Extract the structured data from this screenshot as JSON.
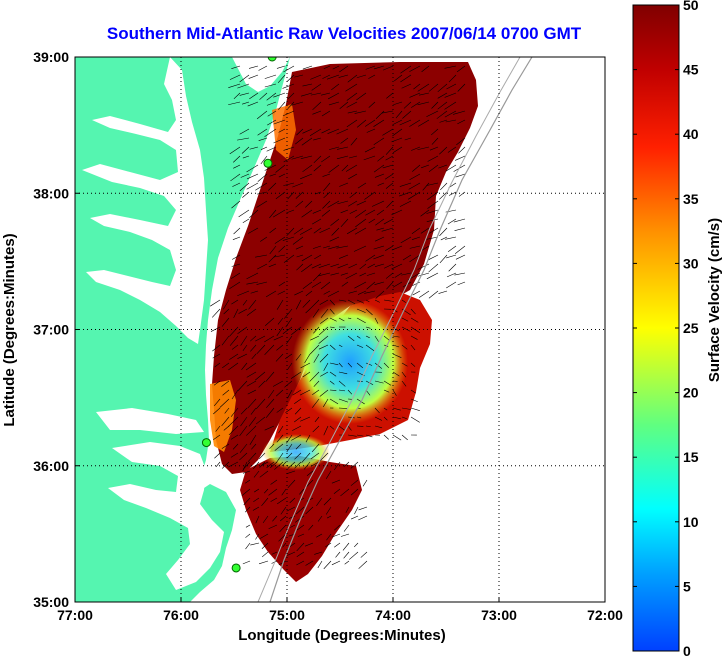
{
  "title": "Southern Mid-Atlantic Raw Velocities 2007/06/14 0700 GMT",
  "xlabel": "Longitude (Degrees:Minutes)",
  "ylabel": "Latitude (Degrees:Minutes)",
  "x_ticks": [
    "77:00",
    "76:00",
    "75:00",
    "74:00",
    "73:00",
    "72:00"
  ],
  "y_ticks": [
    "39:00",
    "38:00",
    "37:00",
    "36:00",
    "35:00"
  ],
  "colorbar": {
    "label": "Surface Velocity (cm/s)",
    "ticks": [
      "0",
      "5",
      "10",
      "15",
      "20",
      "25",
      "30",
      "35",
      "40",
      "45",
      "50"
    ],
    "min": 0,
    "max": 50
  },
  "map_extent": {
    "lon_min": -77,
    "lon_max": -72,
    "lat_min": 35,
    "lat_max": 39
  },
  "colors": {
    "land": "#55f5b0",
    "title": "#0000ff",
    "grid": "#000000"
  },
  "station_markers": [
    {
      "lon": -75.14,
      "lat": 39.0
    },
    {
      "lon": -75.18,
      "lat": 38.22
    },
    {
      "lon": -75.76,
      "lat": 36.17
    },
    {
      "lon": -75.48,
      "lat": 35.25
    }
  ]
}
